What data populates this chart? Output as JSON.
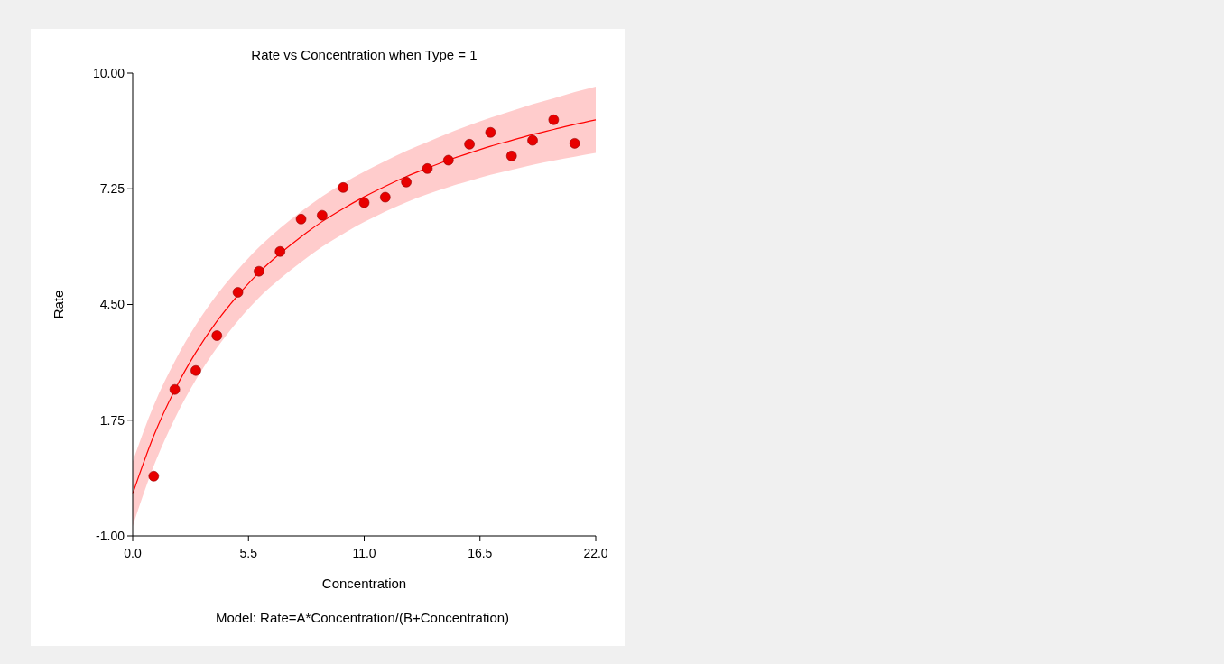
{
  "chart_data": {
    "type": "scatter",
    "title": "Rate vs Concentration when Type = 1",
    "xlabel": "Concentration",
    "ylabel": "Rate",
    "annotations": [
      "Model: Rate=A*Concentration/(B+Concentration)"
    ],
    "xlim": [
      0,
      22
    ],
    "ylim": [
      -1,
      10
    ],
    "xticks": [
      {
        "value": 0,
        "label": "0.0"
      },
      {
        "value": 5.5,
        "label": "5.5"
      },
      {
        "value": 11,
        "label": "11.0"
      },
      {
        "value": 16.5,
        "label": "16.5"
      },
      {
        "value": 22,
        "label": "22.0"
      }
    ],
    "yticks": [
      {
        "value": -1,
        "label": "-1.00"
      },
      {
        "value": 1.75,
        "label": "1.75"
      },
      {
        "value": 4.5,
        "label": "4.50"
      },
      {
        "value": 7.25,
        "label": "7.25"
      },
      {
        "value": 10,
        "label": "10.00"
      }
    ],
    "grid": false,
    "series": [
      {
        "type": "line",
        "marker": "none",
        "color": "#ff0000",
        "x": [
          0,
          1,
          2,
          3,
          4,
          5,
          6,
          7,
          8,
          9,
          10,
          11,
          12,
          13,
          14,
          15,
          16,
          17,
          18,
          19,
          20,
          21,
          22
        ],
        "values": [
          0,
          1.38,
          2.47,
          3.36,
          4.1,
          4.72,
          5.26,
          5.71,
          6.11,
          6.47,
          6.78,
          7.06,
          7.31,
          7.54,
          7.74,
          7.93,
          8.1,
          8.26,
          8.4,
          8.54,
          8.66,
          8.78,
          8.89
        ],
        "lower": [
          -0.77,
          0.66,
          1.79,
          2.71,
          3.47,
          4.11,
          4.66,
          5.11,
          5.51,
          5.87,
          6.18,
          6.46,
          6.71,
          6.93,
          7.12,
          7.29,
          7.44,
          7.58,
          7.7,
          7.82,
          7.92,
          8.01,
          8.1
        ],
        "upper": [
          0.77,
          2.1,
          3.15,
          4.01,
          4.73,
          5.33,
          5.86,
          6.31,
          6.71,
          7.07,
          7.38,
          7.66,
          7.91,
          8.15,
          8.36,
          8.57,
          8.76,
          8.94,
          9.1,
          9.26,
          9.4,
          9.55,
          9.68
        ]
      },
      {
        "marker": "circle",
        "color": "#e80000",
        "x": [
          1,
          2,
          3,
          4,
          5,
          6,
          7,
          8,
          9,
          10,
          11,
          12,
          13,
          14,
          15,
          16,
          17,
          18,
          19,
          20,
          21
        ],
        "values": [
          0.42,
          2.48,
          2.93,
          3.76,
          4.79,
          5.29,
          5.76,
          6.53,
          6.62,
          7.28,
          6.92,
          7.05,
          7.41,
          7.73,
          7.93,
          8.31,
          8.59,
          8.03,
          8.4,
          8.89,
          8.33
        ]
      }
    ]
  }
}
